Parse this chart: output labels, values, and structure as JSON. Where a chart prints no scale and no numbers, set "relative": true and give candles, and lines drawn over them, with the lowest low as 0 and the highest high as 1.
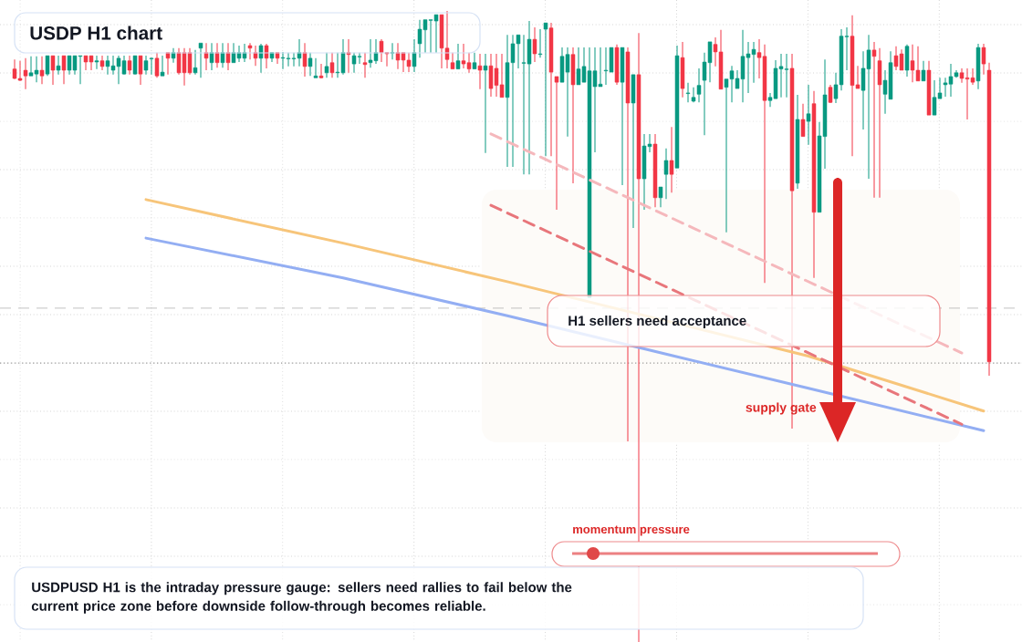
{
  "chart_data": {
    "type": "candlestick",
    "title": "USDP H1 chart",
    "relative": true,
    "grid": true,
    "categories": [
      null,
      null,
      null,
      null,
      null,
      null,
      null,
      null,
      null,
      null,
      null,
      null,
      null,
      null,
      null,
      null,
      null,
      null,
      null,
      null,
      null,
      null,
      null,
      null,
      null,
      null,
      null,
      null,
      null,
      null,
      null,
      null,
      null,
      null,
      null,
      null,
      null,
      null,
      null,
      null,
      null,
      null,
      null,
      null,
      null,
      null,
      null,
      null,
      null,
      null,
      null,
      null,
      null,
      null,
      null,
      null,
      null,
      null,
      null,
      null,
      null,
      null,
      null,
      null,
      null,
      null,
      null,
      null,
      null,
      null,
      null,
      null,
      null,
      null,
      null,
      null,
      null,
      null,
      null,
      null,
      null,
      null,
      null,
      null,
      null,
      null,
      null,
      null,
      null,
      null,
      null,
      null,
      null,
      null,
      null,
      null,
      null,
      null,
      null,
      null,
      null,
      null,
      null,
      null,
      null,
      null,
      null,
      null,
      null,
      null,
      null,
      null,
      null,
      null,
      null,
      null,
      null,
      null,
      null,
      null,
      null,
      null,
      null,
      null,
      null,
      null,
      null,
      null,
      null,
      null,
      null,
      null,
      null,
      null,
      null,
      null,
      null,
      null,
      null,
      null,
      null,
      null,
      null,
      null,
      null,
      null,
      null,
      null,
      null,
      null,
      null,
      null,
      null,
      null,
      null,
      null,
      null,
      null,
      null,
      null,
      null,
      null,
      null,
      null,
      null,
      null,
      null,
      null,
      null,
      null,
      null,
      null,
      null,
      null,
      null,
      null,
      null,
      null,
      null
    ],
    "ohlc": [
      [
        0.908,
        0.923,
        0.892,
        0.893
      ],
      [
        0.893,
        0.921,
        0.889,
        0.89
      ],
      [
        0.906,
        0.925,
        0.876,
        0.897
      ],
      [
        0.897,
        0.928,
        0.897,
        0.902
      ],
      [
        0.9,
        0.928,
        0.887,
        0.906
      ],
      [
        0.906,
        0.928,
        0.884,
        0.897
      ],
      [
        0.9,
        0.929,
        0.897,
        0.929
      ],
      [
        0.929,
        0.929,
        0.883,
        0.906
      ],
      [
        0.906,
        0.929,
        0.899,
        0.913
      ],
      [
        0.929,
        0.929,
        0.884,
        0.906
      ],
      [
        0.906,
        0.929,
        0.899,
        0.929
      ],
      [
        0.906,
        0.929,
        0.899,
        0.929
      ],
      [
        0.928,
        0.929,
        0.884,
        0.929
      ],
      [
        0.929,
        0.929,
        0.906,
        0.919
      ],
      [
        0.929,
        0.929,
        0.906,
        0.919
      ],
      [
        0.919,
        0.929,
        0.908,
        0.921
      ],
      [
        0.921,
        0.929,
        0.906,
        0.912
      ],
      [
        0.912,
        0.929,
        0.899,
        0.921
      ],
      [
        0.906,
        0.929,
        0.899,
        0.913
      ],
      [
        0.912,
        0.929,
        0.884,
        0.925
      ],
      [
        0.9,
        0.929,
        0.899,
        0.921
      ],
      [
        0.921,
        0.929,
        0.899,
        0.906
      ],
      [
        0.9,
        0.929,
        0.899,
        0.929
      ],
      [
        0.929,
        0.929,
        0.883,
        0.9
      ],
      [
        0.906,
        0.929,
        0.899,
        0.921
      ],
      [
        0.924,
        0.926,
        0.899,
        0.925
      ],
      [
        0.925,
        0.934,
        0.894,
        0.897
      ],
      [
        0.897,
        0.929,
        0.897,
        0.903
      ],
      [
        0.934,
        0.934,
        0.899,
        0.925
      ],
      [
        0.925,
        0.941,
        0.918,
        0.934
      ],
      [
        0.934,
        0.941,
        0.899,
        0.902
      ],
      [
        0.934,
        0.941,
        0.882,
        0.902
      ],
      [
        0.934,
        0.941,
        0.899,
        0.902
      ],
      [
        0.902,
        0.938,
        0.899,
        0.91
      ],
      [
        0.941,
        0.949,
        0.894,
        0.949
      ],
      [
        0.934,
        0.949,
        0.906,
        0.925
      ],
      [
        0.918,
        0.949,
        0.906,
        0.934
      ],
      [
        0.934,
        0.949,
        0.91,
        0.918
      ],
      [
        0.918,
        0.949,
        0.91,
        0.934
      ],
      [
        0.934,
        0.949,
        0.906,
        0.918
      ],
      [
        0.918,
        0.949,
        0.918,
        0.934
      ],
      [
        0.925,
        0.945,
        0.919,
        0.934
      ],
      [
        0.925,
        0.948,
        0.919,
        0.934
      ],
      [
        0.945,
        0.949,
        0.923,
        0.941
      ],
      [
        0.934,
        0.945,
        0.913,
        0.925
      ],
      [
        0.925,
        0.948,
        0.902,
        0.945
      ],
      [
        0.945,
        0.948,
        0.909,
        0.925
      ],
      [
        0.925,
        0.934,
        0.919,
        0.934
      ],
      [
        0.934,
        0.934,
        0.916,
        0.925
      ],
      [
        0.925,
        0.935,
        0.908,
        0.926
      ],
      [
        0.924,
        0.934,
        0.912,
        0.925
      ],
      [
        0.924,
        0.934,
        0.912,
        0.925
      ],
      [
        0.925,
        0.955,
        0.912,
        0.934
      ],
      [
        0.934,
        0.949,
        0.896,
        0.912
      ],
      [
        0.912,
        0.934,
        0.897,
        0.925
      ],
      [
        0.894,
        0.925,
        0.894,
        0.897
      ],
      [
        0.897,
        0.916,
        0.893,
        0.894
      ],
      [
        0.902,
        0.934,
        0.894,
        0.912
      ],
      [
        0.918,
        0.934,
        0.894,
        0.902
      ],
      [
        0.902,
        0.934,
        0.894,
        0.903
      ],
      [
        0.902,
        0.955,
        0.899,
        0.934
      ],
      [
        0.934,
        0.955,
        0.902,
        0.931
      ],
      [
        0.916,
        0.934,
        0.902,
        0.929
      ],
      [
        0.927,
        0.934,
        0.916,
        0.928
      ],
      [
        0.918,
        0.934,
        0.894,
        0.915
      ],
      [
        0.918,
        0.955,
        0.91,
        0.922
      ],
      [
        0.921,
        0.955,
        0.916,
        0.934
      ],
      [
        0.952,
        0.955,
        0.919,
        0.934
      ],
      [
        0.934,
        0.934,
        0.912,
        0.932
      ],
      [
        0.933,
        0.949,
        0.923,
        0.934
      ],
      [
        0.934,
        0.949,
        0.908,
        0.922
      ],
      [
        0.934,
        0.934,
        0.903,
        0.922
      ],
      [
        0.922,
        0.934,
        0.903,
        0.912
      ],
      [
        0.912,
        0.955,
        0.903,
        0.934
      ],
      [
        0.948,
        0.986,
        0.926,
        0.971
      ],
      [
        0.97,
        0.986,
        0.934,
        0.986
      ],
      [
        0.985,
        0.986,
        0.934,
        0.986
      ],
      [
        0.984,
        0.994,
        0.934,
        0.994
      ],
      [
        0.994,
        0.994,
        0.909,
        0.941
      ],
      [
        0.941,
        1.0,
        0.909,
        0.923
      ],
      [
        0.918,
        0.934,
        0.908,
        0.908
      ],
      [
        0.908,
        0.948,
        0.908,
        0.921
      ],
      [
        0.921,
        0.948,
        0.909,
        0.916
      ],
      [
        0.918,
        0.934,
        0.902,
        0.908
      ],
      [
        0.908,
        0.934,
        0.908,
        0.918
      ],
      [
        0.913,
        0.932,
        0.876,
        0.906
      ],
      [
        0.906,
        0.932,
        0.775,
        0.913
      ],
      [
        0.913,
        0.932,
        0.864,
        0.877
      ],
      [
        0.909,
        0.932,
        0.864,
        0.882
      ],
      [
        0.883,
        0.932,
        0.863,
        0.863
      ],
      [
        0.863,
        0.962,
        0.753,
        0.918
      ],
      [
        0.918,
        0.962,
        0.753,
        0.948
      ],
      [
        0.948,
        0.962,
        0.909,
        0.962
      ],
      [
        0.917,
        0.962,
        0.741,
        0.918
      ],
      [
        0.916,
        0.984,
        0.741,
        0.955
      ],
      [
        0.955,
        0.974,
        0.919,
        0.932
      ],
      [
        0.931,
        0.971,
        0.926,
        0.932
      ],
      [
        0.971,
        0.981,
        0.77,
        0.981
      ],
      [
        0.973,
        0.981,
        0.77,
        0.903
      ],
      [
        0.896,
        0.896,
        0.685,
        0.887
      ],
      [
        0.887,
        0.942,
        0.887,
        0.928
      ],
      [
        0.903,
        0.942,
        0.801,
        0.931
      ],
      [
        0.931,
        0.942,
        0.727,
        0.883
      ],
      [
        0.883,
        0.942,
        0.883,
        0.908
      ],
      [
        0.887,
        0.942,
        0.887,
        0.912
      ],
      [
        0.546,
        0.942,
        0.546,
        0.905
      ],
      [
        0.88,
        0.942,
        0.776,
        0.905
      ],
      [
        0.88,
        0.942,
        0.88,
        0.884
      ],
      [
        0.905,
        0.942,
        0.883,
        0.906
      ],
      [
        0.903,
        0.942,
        0.903,
        0.942
      ],
      [
        0.942,
        0.947,
        0.883,
        0.887
      ],
      [
        0.887,
        0.942,
        0.724,
        0.942
      ],
      [
        0.935,
        0.942,
        0.318,
        0.854
      ],
      [
        0.854,
        0.899,
        0.656,
        0.899
      ],
      [
        0.899,
        0.965,
        0.0,
        0.734
      ],
      [
        0.734,
        0.805,
        0.685,
        0.786
      ],
      [
        0.785,
        0.805,
        0.776,
        0.789
      ],
      [
        0.789,
        0.805,
        0.689,
        0.704
      ],
      [
        0.704,
        0.721,
        0.689,
        0.721
      ],
      [
        0.741,
        0.782,
        0.702,
        0.763
      ],
      [
        0.763,
        0.816,
        0.712,
        0.741
      ],
      [
        0.751,
        0.945,
        0.751,
        0.929
      ],
      [
        0.926,
        0.951,
        0.863,
        0.877
      ],
      [
        0.869,
        0.886,
        0.855,
        0.87
      ],
      [
        0.857,
        0.879,
        0.855,
        0.863
      ],
      [
        0.868,
        0.909,
        0.855,
        0.882
      ],
      [
        0.89,
        0.934,
        0.803,
        0.919
      ],
      [
        0.918,
        0.951,
        0.887,
        0.951
      ],
      [
        0.947,
        0.958,
        0.912,
        0.935
      ],
      [
        0.935,
        0.97,
        0.876,
        0.876
      ],
      [
        0.879,
        0.892,
        0.649,
        0.892
      ],
      [
        0.892,
        0.913,
        0.855,
        0.905
      ],
      [
        0.877,
        0.906,
        0.877,
        0.893
      ],
      [
        0.892,
        0.97,
        0.855,
        0.928
      ],
      [
        0.926,
        0.951,
        0.87,
        0.932
      ],
      [
        0.931,
        0.951,
        0.886,
        0.939
      ],
      [
        0.934,
        0.955,
        0.893,
        0.926
      ],
      [
        0.928,
        0.947,
        0.569,
        0.858
      ],
      [
        0.858,
        0.87,
        0.848,
        0.863
      ],
      [
        0.861,
        0.922,
        0.861,
        0.909
      ],
      [
        0.908,
        0.932,
        0.863,
        0.912
      ],
      [
        0.907,
        0.932,
        0.863,
        0.908
      ],
      [
        0.909,
        0.932,
        0.338,
        0.715
      ],
      [
        0.727,
        0.867,
        0.718,
        0.828
      ],
      [
        0.828,
        0.853,
        0.801,
        0.801
      ],
      [
        0.825,
        0.883,
        0.788,
        0.837
      ],
      [
        0.853,
        0.873,
        0.577,
        0.681
      ],
      [
        0.681,
        0.824,
        0.681,
        0.802
      ],
      [
        0.801,
        0.923,
        0.75,
        0.867
      ],
      [
        0.879,
        0.883,
        0.854,
        0.855
      ],
      [
        0.861,
        0.902,
        0.854,
        0.883
      ],
      [
        0.883,
        0.971,
        0.874,
        0.96
      ],
      [
        0.959,
        0.974,
        0.906,
        0.96
      ],
      [
        0.96,
        0.993,
        0.77,
        0.882
      ],
      [
        0.883,
        0.913,
        0.877,
        0.877
      ],
      [
        0.874,
        0.936,
        0.812,
        0.909
      ],
      [
        0.908,
        0.962,
        0.734,
        0.938
      ],
      [
        0.938,
        0.951,
        0.704,
        0.928
      ],
      [
        0.921,
        0.941,
        0.704,
        0.883
      ],
      [
        0.868,
        0.906,
        0.837,
        0.89
      ],
      [
        0.86,
        0.936,
        0.86,
        0.918
      ],
      [
        0.929,
        0.944,
        0.906,
        0.912
      ],
      [
        0.932,
        0.939,
        0.906,
        0.906
      ],
      [
        0.906,
        0.947,
        0.896,
        0.944
      ],
      [
        0.921,
        0.947,
        0.887,
        0.906
      ],
      [
        0.906,
        0.944,
        0.889,
        0.889
      ],
      [
        0.889,
        0.921,
        0.889,
        0.906
      ],
      [
        0.906,
        0.921,
        0.835,
        0.835
      ],
      [
        0.835,
        0.89,
        0.835,
        0.863
      ],
      [
        0.861,
        0.894,
        0.861,
        0.87
      ],
      [
        0.883,
        0.894,
        0.864,
        0.886
      ],
      [
        0.884,
        0.916,
        0.864,
        0.896
      ],
      [
        0.896,
        0.906,
        0.894,
        0.902
      ],
      [
        0.902,
        0.909,
        0.886,
        0.893
      ],
      [
        0.894,
        0.909,
        0.828,
        0.892
      ],
      [
        0.894,
        0.909,
        0.883,
        0.887
      ],
      [
        0.889,
        0.948,
        0.876,
        0.942
      ],
      [
        0.942,
        0.948,
        0.899,
        0.916
      ],
      [
        0.906,
        0.918,
        0.422,
        0.444
      ]
    ],
    "series": [
      {
        "type": "line",
        "color": "#f7c57a",
        "line_style": "solid",
        "values": [
          null,
          null,
          null,
          null,
          null,
          null,
          null,
          null,
          null,
          null,
          null,
          null,
          null,
          null,
          null,
          null,
          null,
          null,
          null,
          null,
          null,
          null,
          null,
          null,
          0.701,
          null,
          null,
          null,
          null,
          null,
          null,
          null,
          null,
          null,
          null,
          null,
          null,
          null,
          null,
          null,
          null,
          null,
          null,
          null,
          null,
          null,
          null,
          null,
          null,
          null,
          null,
          null,
          null,
          null,
          null,
          null,
          null,
          null,
          null,
          null,
          0.632,
          null,
          null,
          null,
          null,
          null,
          null,
          null,
          null,
          null,
          null,
          null,
          null,
          null,
          null,
          null,
          null,
          null,
          null,
          null,
          null,
          null,
          null,
          null,
          null,
          null,
          null,
          null,
          null,
          null,
          0.571,
          null,
          null,
          null,
          null,
          null,
          null,
          null,
          null,
          null,
          null,
          null,
          null,
          null,
          null,
          null,
          null,
          null,
          null,
          null,
          null,
          null,
          null,
          null,
          null,
          null,
          null,
          null,
          null,
          null,
          null,
          null,
          null,
          null,
          null,
          null,
          null,
          null,
          null,
          null,
          null,
          null,
          null,
          null,
          null,
          null,
          null,
          null,
          null,
          null,
          null,
          null,
          null,
          null,
          null,
          0.453,
          null,
          null,
          null,
          null,
          null,
          null,
          null,
          null,
          null,
          null,
          null,
          null,
          null,
          null,
          null,
          null,
          null,
          null,
          null,
          null,
          null,
          null,
          null,
          null,
          null,
          null,
          null,
          null,
          null,
          null,
          null,
          0.366,
          null
        ]
      },
      {
        "type": "line",
        "color": "#93aef3",
        "line_style": "solid",
        "values": [
          null,
          null,
          null,
          null,
          null,
          null,
          null,
          null,
          null,
          null,
          null,
          null,
          null,
          null,
          null,
          null,
          null,
          null,
          null,
          null,
          null,
          null,
          null,
          null,
          0.64,
          null,
          null,
          null,
          null,
          null,
          null,
          null,
          null,
          null,
          null,
          null,
          null,
          null,
          null,
          null,
          null,
          null,
          null,
          null,
          null,
          null,
          null,
          null,
          null,
          null,
          null,
          null,
          null,
          null,
          null,
          null,
          null,
          null,
          null,
          null,
          0.577,
          null,
          null,
          null,
          null,
          null,
          null,
          null,
          null,
          null,
          null,
          null,
          null,
          null,
          null,
          null,
          null,
          null,
          null,
          null,
          null,
          null,
          null,
          null,
          null,
          null,
          null,
          null,
          null,
          null,
          0.517,
          null,
          null,
          null,
          null,
          null,
          null,
          null,
          null,
          null,
          null,
          null,
          null,
          null,
          null,
          null,
          null,
          null,
          null,
          null,
          null,
          null,
          null,
          null,
          null,
          null,
          null,
          null,
          null,
          null,
          0.454,
          null,
          null,
          null,
          null,
          null,
          null,
          null,
          null,
          null,
          null,
          null,
          null,
          null,
          null,
          null,
          null,
          null,
          null,
          null,
          null,
          null,
          null,
          null,
          null,
          0.402,
          null,
          null,
          null,
          null,
          null,
          null,
          null,
          null,
          null,
          null,
          null,
          null,
          null,
          null,
          null,
          null,
          null,
          null,
          null,
          null,
          null,
          null,
          null,
          null,
          null,
          null,
          null,
          null,
          null,
          null,
          null,
          0.335,
          null
        ]
      },
      {
        "type": "line",
        "color": "#f5b8bc",
        "line_style": "dashed",
        "values": [
          null,
          null,
          null,
          null,
          null,
          null,
          null,
          null,
          null,
          null,
          null,
          null,
          null,
          null,
          null,
          null,
          null,
          null,
          null,
          null,
          null,
          null,
          null,
          null,
          null,
          null,
          null,
          null,
          null,
          null,
          null,
          null,
          null,
          null,
          null,
          null,
          null,
          null,
          null,
          null,
          null,
          null,
          null,
          null,
          null,
          null,
          null,
          null,
          null,
          null,
          null,
          null,
          null,
          null,
          null,
          null,
          null,
          null,
          null,
          null,
          null,
          null,
          null,
          null,
          null,
          null,
          null,
          null,
          null,
          null,
          null,
          null,
          null,
          null,
          null,
          null,
          null,
          null,
          null,
          null,
          null,
          null,
          null,
          null,
          null,
          null,
          null,
          0.805,
          null,
          null,
          null,
          null,
          null,
          null,
          null,
          null,
          null,
          null,
          null,
          null,
          null,
          null,
          null,
          null,
          null,
          null,
          null,
          null,
          null,
          null,
          null,
          null,
          null,
          null,
          null,
          null,
          null,
          null,
          null,
          null,
          null,
          null,
          null,
          null,
          null,
          null,
          null,
          null,
          null,
          null,
          null,
          null,
          null,
          null,
          null,
          null,
          null,
          null,
          null,
          null,
          null,
          null,
          null,
          null,
          null,
          null,
          null,
          null,
          null,
          null,
          null,
          null,
          null,
          null,
          null,
          null,
          null,
          null,
          null,
          null,
          null,
          null,
          null,
          null,
          null,
          null,
          null,
          null,
          null,
          null,
          null,
          null,
          null,
          0.458,
          null,
          null,
          null,
          null,
          null
        ]
      },
      {
        "type": "line",
        "color": "#e8767b",
        "line_style": "dashed",
        "values": [
          null,
          null,
          null,
          null,
          null,
          null,
          null,
          null,
          null,
          null,
          null,
          null,
          null,
          null,
          null,
          null,
          null,
          null,
          null,
          null,
          null,
          null,
          null,
          null,
          null,
          null,
          null,
          null,
          null,
          null,
          null,
          null,
          null,
          null,
          null,
          null,
          null,
          null,
          null,
          null,
          null,
          null,
          null,
          null,
          null,
          null,
          null,
          null,
          null,
          null,
          null,
          null,
          null,
          null,
          null,
          null,
          null,
          null,
          null,
          null,
          null,
          null,
          null,
          null,
          null,
          null,
          null,
          null,
          null,
          null,
          null,
          null,
          null,
          null,
          null,
          null,
          null,
          null,
          null,
          null,
          null,
          null,
          null,
          null,
          null,
          null,
          null,
          0.692,
          null,
          null,
          null,
          null,
          null,
          null,
          null,
          null,
          null,
          null,
          null,
          null,
          null,
          null,
          null,
          null,
          null,
          null,
          null,
          null,
          null,
          null,
          null,
          null,
          null,
          null,
          null,
          null,
          null,
          null,
          null,
          null,
          null,
          null,
          null,
          null,
          null,
          null,
          null,
          null,
          null,
          null,
          null,
          null,
          null,
          null,
          null,
          null,
          null,
          null,
          null,
          null,
          null,
          null,
          null,
          null,
          null,
          null,
          null,
          null,
          null,
          null,
          null,
          null,
          null,
          null,
          null,
          null,
          null,
          null,
          null,
          null,
          null,
          null,
          null,
          null,
          null,
          null,
          null,
          null,
          null,
          null,
          null,
          null,
          null,
          0.345,
          null,
          null,
          null,
          null,
          null
        ]
      }
    ],
    "ref_lines": [
      {
        "axis": "y",
        "value": 0.529,
        "color": "#9e9e9e",
        "line_style": "dashed"
      },
      {
        "axis": "y",
        "value": 0.442,
        "color": "#444444",
        "line_style": "dotted"
      }
    ],
    "annotations": [
      "H1 sellers need acceptance",
      "supply gate",
      "momentum pressure",
      "USDPUSD H1 is the intraday pressure gauge: sellers need rallies to fail below the current price zone before downside follow-through becomes reliable."
    ]
  }
}
